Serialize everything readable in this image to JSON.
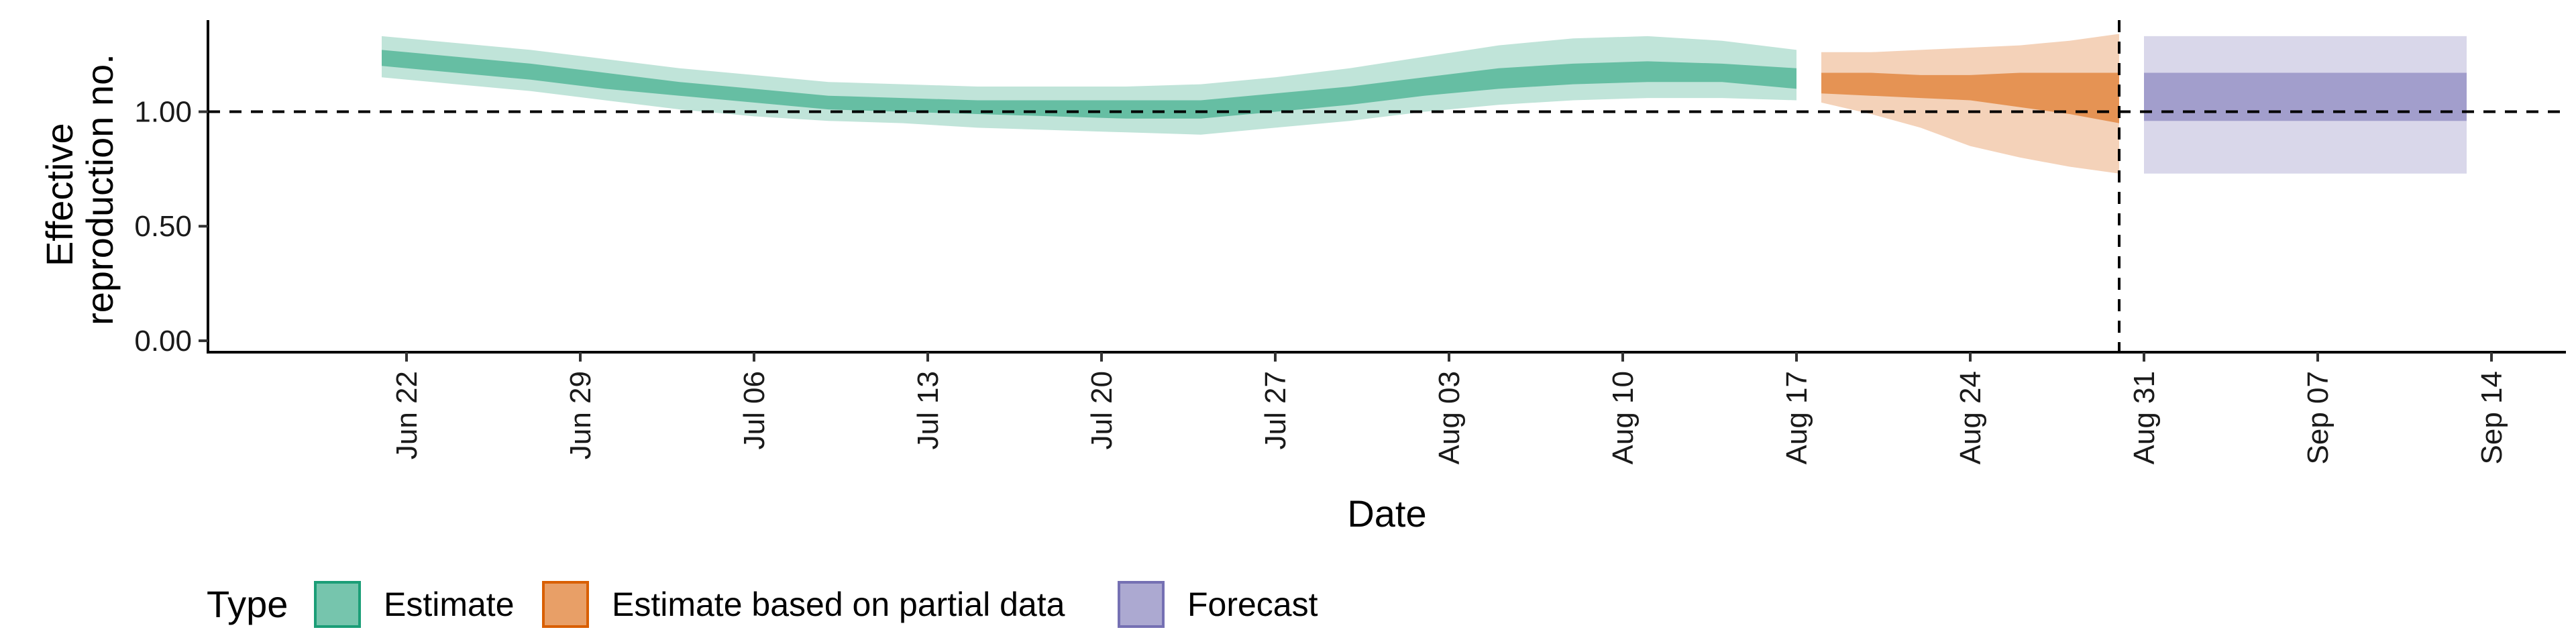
{
  "chart_data": {
    "type": "area",
    "xlabel": "Date",
    "ylabel_lines": [
      "Effective",
      "reproduction no."
    ],
    "x_ticks": [
      "Jun 22",
      "Jun 29",
      "Jul 06",
      "Jul 13",
      "Jul 20",
      "Jul 27",
      "Aug 03",
      "Aug 10",
      "Aug 17",
      "Aug 24",
      "Aug 31",
      "Sep 07",
      "Sep 14"
    ],
    "x_tick_dates": [
      "2020-06-22",
      "2020-06-29",
      "2020-07-06",
      "2020-07-13",
      "2020-07-20",
      "2020-07-27",
      "2020-08-03",
      "2020-08-10",
      "2020-08-17",
      "2020-08-24",
      "2020-08-31",
      "2020-09-07",
      "2020-09-14"
    ],
    "xlim": [
      "2020-06-14",
      "2020-09-17"
    ],
    "y_ticks": [
      "0.00",
      "0.50",
      "1.00"
    ],
    "y_tick_values": [
      0,
      0.5,
      1.0
    ],
    "ylim": [
      -0.05,
      1.4
    ],
    "hline": 1.0,
    "vline": "2020-08-30",
    "legend": {
      "title": "Type",
      "position": "bottom-left"
    },
    "series": [
      {
        "name": "Estimate",
        "color": "#1b9e77",
        "dates": [
          "2020-06-21",
          "2020-06-24",
          "2020-06-27",
          "2020-06-30",
          "2020-07-03",
          "2020-07-06",
          "2020-07-09",
          "2020-07-12",
          "2020-07-15",
          "2020-07-18",
          "2020-07-21",
          "2020-07-24",
          "2020-07-27",
          "2020-07-30",
          "2020-08-02",
          "2020-08-05",
          "2020-08-08",
          "2020-08-11",
          "2020-08-14",
          "2020-08-17"
        ],
        "outer_lower": [
          1.15,
          1.12,
          1.09,
          1.05,
          1.01,
          0.98,
          0.96,
          0.95,
          0.93,
          0.92,
          0.91,
          0.9,
          0.93,
          0.96,
          1.0,
          1.03,
          1.05,
          1.06,
          1.06,
          1.05
        ],
        "inner_lower": [
          1.2,
          1.17,
          1.14,
          1.1,
          1.07,
          1.04,
          1.01,
          1.0,
          0.99,
          0.98,
          0.97,
          0.97,
          1.0,
          1.03,
          1.07,
          1.1,
          1.12,
          1.13,
          1.13,
          1.1
        ],
        "inner_upper": [
          1.27,
          1.24,
          1.21,
          1.17,
          1.13,
          1.1,
          1.07,
          1.06,
          1.05,
          1.05,
          1.05,
          1.05,
          1.08,
          1.11,
          1.15,
          1.19,
          1.21,
          1.22,
          1.21,
          1.19
        ],
        "outer_upper": [
          1.33,
          1.3,
          1.27,
          1.23,
          1.19,
          1.16,
          1.13,
          1.12,
          1.11,
          1.11,
          1.11,
          1.12,
          1.15,
          1.19,
          1.24,
          1.29,
          1.32,
          1.33,
          1.31,
          1.27
        ]
      },
      {
        "name": "Estimate based on partial data",
        "color": "#d95f02",
        "dates": [
          "2020-08-18",
          "2020-08-20",
          "2020-08-22",
          "2020-08-24",
          "2020-08-26",
          "2020-08-28",
          "2020-08-30"
        ],
        "outer_lower": [
          1.04,
          0.99,
          0.93,
          0.85,
          0.8,
          0.76,
          0.73
        ],
        "inner_lower": [
          1.08,
          1.07,
          1.06,
          1.05,
          1.02,
          0.99,
          0.95
        ],
        "inner_upper": [
          1.17,
          1.17,
          1.16,
          1.16,
          1.17,
          1.17,
          1.17
        ],
        "outer_upper": [
          1.26,
          1.26,
          1.27,
          1.28,
          1.29,
          1.31,
          1.34
        ]
      },
      {
        "name": "Forecast",
        "color": "#7570b3",
        "dates": [
          "2020-08-31",
          "2020-09-13"
        ],
        "outer_lower": [
          0.73,
          0.73
        ],
        "inner_lower": [
          0.96,
          0.96
        ],
        "inner_upper": [
          1.17,
          1.17
        ],
        "outer_upper": [
          1.33,
          1.33
        ]
      }
    ]
  }
}
